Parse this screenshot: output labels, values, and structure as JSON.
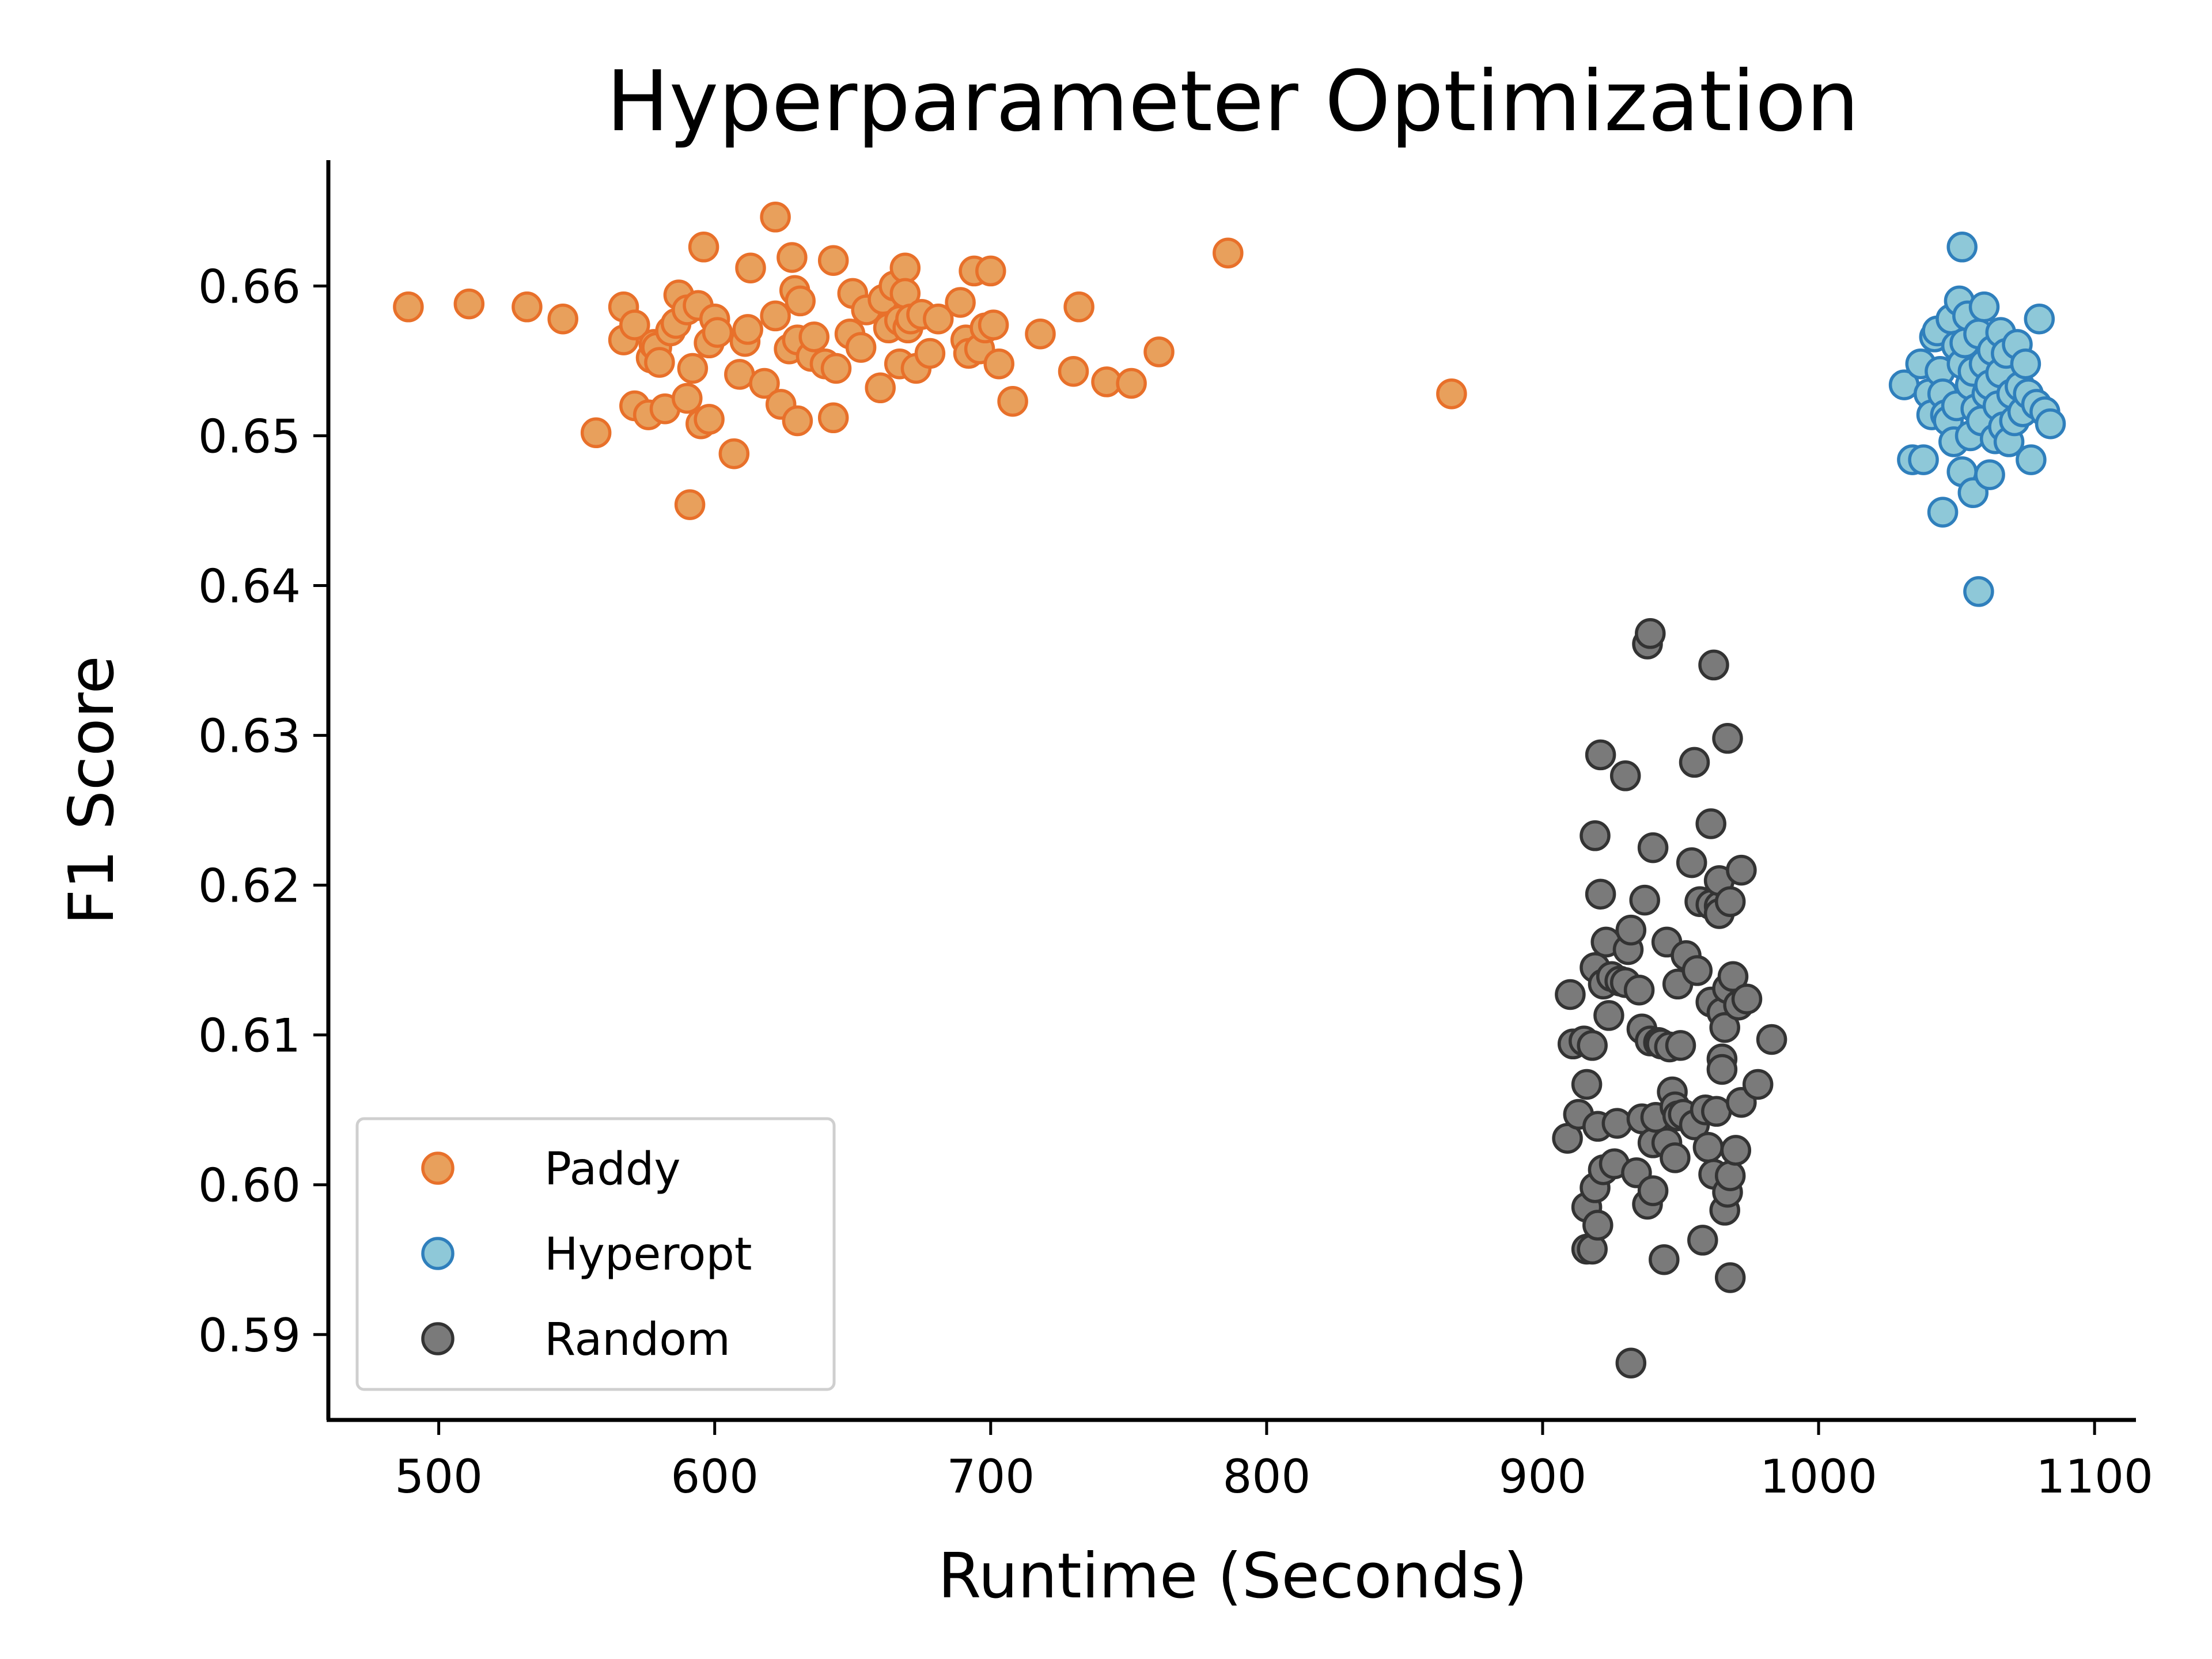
{
  "chart_data": {
    "type": "scatter",
    "title": "Hyperparameter Optimization",
    "xlabel": "Runtime (Seconds)",
    "ylabel": "F1 Score",
    "xlim": [
      460,
      1115
    ],
    "ylim": [
      0.5843,
      0.6684
    ],
    "xticks": [
      500,
      600,
      700,
      800,
      900,
      1000,
      1100
    ],
    "xtick_labels": [
      "500",
      "600",
      "700",
      "800",
      "900",
      "1000",
      "1100"
    ],
    "yticks": [
      0.59,
      0.6,
      0.61,
      0.62,
      0.63,
      0.64,
      0.65,
      0.66
    ],
    "ytick_labels": [
      "0.59",
      "0.60",
      "0.61",
      "0.62",
      "0.63",
      "0.64",
      "0.65",
      "0.66"
    ],
    "grid": false,
    "legend_position": "lower-left",
    "series": [
      {
        "name": "Paddy",
        "fill": "#E8A05C",
        "edge": "#E8702A",
        "points": [
          [
            489,
            0.6586
          ],
          [
            511,
            0.6588
          ],
          [
            532,
            0.6586
          ],
          [
            545,
            0.6578
          ],
          [
            557,
            0.6502
          ],
          [
            567,
            0.6586
          ],
          [
            567,
            0.6564
          ],
          [
            571,
            0.652
          ],
          [
            571,
            0.6574
          ],
          [
            576,
            0.6514
          ],
          [
            577,
            0.6552
          ],
          [
            578,
            0.6561
          ],
          [
            579,
            0.6559
          ],
          [
            580,
            0.6549
          ],
          [
            582,
            0.6518
          ],
          [
            584,
            0.657
          ],
          [
            586,
            0.6575
          ],
          [
            587,
            0.6594
          ],
          [
            590,
            0.6525
          ],
          [
            590,
            0.6584
          ],
          [
            591,
            0.6454
          ],
          [
            592,
            0.6545
          ],
          [
            594,
            0.6587
          ],
          [
            595,
            0.6508
          ],
          [
            596,
            0.6626
          ],
          [
            598,
            0.6511
          ],
          [
            598,
            0.6562
          ],
          [
            600,
            0.6578
          ],
          [
            601,
            0.6569
          ],
          [
            607,
            0.6488
          ],
          [
            609,
            0.6541
          ],
          [
            611,
            0.6563
          ],
          [
            612,
            0.6571
          ],
          [
            613,
            0.6612
          ],
          [
            618,
            0.6535
          ],
          [
            622,
            0.6646
          ],
          [
            622,
            0.658
          ],
          [
            624,
            0.6521
          ],
          [
            627,
            0.6558
          ],
          [
            628,
            0.6619
          ],
          [
            629,
            0.6597
          ],
          [
            630,
            0.651
          ],
          [
            630,
            0.6564
          ],
          [
            631,
            0.659
          ],
          [
            635,
            0.6553
          ],
          [
            636,
            0.6566
          ],
          [
            640,
            0.6548
          ],
          [
            643,
            0.6512
          ],
          [
            643,
            0.6617
          ],
          [
            644,
            0.6545
          ],
          [
            649,
            0.6568
          ],
          [
            650,
            0.6595
          ],
          [
            653,
            0.6559
          ],
          [
            655,
            0.6584
          ],
          [
            660,
            0.6532
          ],
          [
            661,
            0.6591
          ],
          [
            663,
            0.6572
          ],
          [
            665,
            0.66
          ],
          [
            667,
            0.6548
          ],
          [
            667,
            0.6577
          ],
          [
            669,
            0.6612
          ],
          [
            669,
            0.6595
          ],
          [
            670,
            0.6572
          ],
          [
            671,
            0.6578
          ],
          [
            673,
            0.6545
          ],
          [
            675,
            0.6581
          ],
          [
            678,
            0.6555
          ],
          [
            681,
            0.6578
          ],
          [
            689,
            0.6589
          ],
          [
            691,
            0.6564
          ],
          [
            692,
            0.6555
          ],
          [
            694,
            0.661
          ],
          [
            696,
            0.6558
          ],
          [
            698,
            0.6572
          ],
          [
            700,
            0.661
          ],
          [
            701,
            0.6574
          ],
          [
            703,
            0.6548
          ],
          [
            708,
            0.6523
          ],
          [
            718,
            0.6568
          ],
          [
            730,
            0.6543
          ],
          [
            732,
            0.6586
          ],
          [
            742,
            0.6536
          ],
          [
            751,
            0.6535
          ],
          [
            761,
            0.6556
          ],
          [
            786,
            0.6622
          ],
          [
            867,
            0.6528
          ]
        ]
      },
      {
        "name": "Hyperopt",
        "fill": "#8EC8D8",
        "edge": "#2F7FBC",
        "points": [
          [
            1031,
            0.6534
          ],
          [
            1034,
            0.6484
          ],
          [
            1037,
            0.6548
          ],
          [
            1038,
            0.6484
          ],
          [
            1040,
            0.6528
          ],
          [
            1041,
            0.6514
          ],
          [
            1042,
            0.6566
          ],
          [
            1043,
            0.657
          ],
          [
            1044,
            0.6543
          ],
          [
            1045,
            0.6449
          ],
          [
            1045,
            0.6528
          ],
          [
            1046,
            0.6514
          ],
          [
            1047,
            0.651
          ],
          [
            1048,
            0.6578
          ],
          [
            1049,
            0.6496
          ],
          [
            1050,
            0.656
          ],
          [
            1050,
            0.652
          ],
          [
            1051,
            0.659
          ],
          [
            1052,
            0.6626
          ],
          [
            1052,
            0.6548
          ],
          [
            1052,
            0.6476
          ],
          [
            1053,
            0.6562
          ],
          [
            1054,
            0.658
          ],
          [
            1055,
            0.6534
          ],
          [
            1055,
            0.65
          ],
          [
            1056,
            0.6462
          ],
          [
            1056,
            0.6543
          ],
          [
            1057,
            0.6518
          ],
          [
            1058,
            0.6396
          ],
          [
            1058,
            0.6568
          ],
          [
            1059,
            0.651
          ],
          [
            1060,
            0.6586
          ],
          [
            1060,
            0.6548
          ],
          [
            1061,
            0.6528
          ],
          [
            1062,
            0.6474
          ],
          [
            1062,
            0.6534
          ],
          [
            1063,
            0.6557
          ],
          [
            1064,
            0.6498
          ],
          [
            1065,
            0.652
          ],
          [
            1066,
            0.6569
          ],
          [
            1066,
            0.6542
          ],
          [
            1067,
            0.6506
          ],
          [
            1068,
            0.6555
          ],
          [
            1069,
            0.6496
          ],
          [
            1070,
            0.6528
          ],
          [
            1071,
            0.651
          ],
          [
            1072,
            0.6561
          ],
          [
            1073,
            0.6533
          ],
          [
            1074,
            0.6516
          ],
          [
            1075,
            0.6548
          ],
          [
            1076,
            0.6528
          ],
          [
            1077,
            0.6484
          ],
          [
            1079,
            0.6521
          ],
          [
            1080,
            0.6578
          ],
          [
            1082,
            0.6516
          ],
          [
            1084,
            0.6508
          ]
        ]
      },
      {
        "name": "Random",
        "fill": "#7A7A7A",
        "edge": "#333333",
        "points": [
          [
            909,
            0.6031
          ],
          [
            910,
            0.6127
          ],
          [
            911,
            0.6094
          ],
          [
            913,
            0.6047
          ],
          [
            915,
            0.6096
          ],
          [
            916,
            0.6067
          ],
          [
            916,
            0.5957
          ],
          [
            916,
            0.5985
          ],
          [
            918,
            0.6093
          ],
          [
            918,
            0.5957
          ],
          [
            919,
            0.5998
          ],
          [
            919,
            0.6233
          ],
          [
            919,
            0.6145
          ],
          [
            920,
            0.6039
          ],
          [
            920,
            0.5973
          ],
          [
            921,
            0.6287
          ],
          [
            921,
            0.6194
          ],
          [
            922,
            0.6134
          ],
          [
            922,
            0.601
          ],
          [
            923,
            0.6162
          ],
          [
            924,
            0.6113
          ],
          [
            925,
            0.6139
          ],
          [
            926,
            0.6014
          ],
          [
            927,
            0.6041
          ],
          [
            928,
            0.6136
          ],
          [
            930,
            0.6135
          ],
          [
            930,
            0.6273
          ],
          [
            931,
            0.6157
          ],
          [
            932,
            0.617
          ],
          [
            932,
            0.5881
          ],
          [
            934,
            0.6008
          ],
          [
            935,
            0.613
          ],
          [
            936,
            0.6104
          ],
          [
            936,
            0.6044
          ],
          [
            937,
            0.619
          ],
          [
            938,
            0.6361
          ],
          [
            938,
            0.5987
          ],
          [
            939,
            0.6096
          ],
          [
            939,
            0.6368
          ],
          [
            940,
            0.6028
          ],
          [
            940,
            0.6225
          ],
          [
            940,
            0.5996
          ],
          [
            941,
            0.6045
          ],
          [
            942,
            0.6095
          ],
          [
            943,
            0.6094
          ],
          [
            944,
            0.595
          ],
          [
            945,
            0.6162
          ],
          [
            945,
            0.6028
          ],
          [
            946,
            0.6092
          ],
          [
            947,
            0.6062
          ],
          [
            948,
            0.6052
          ],
          [
            948,
            0.6018
          ],
          [
            949,
            0.6046
          ],
          [
            949,
            0.6134
          ],
          [
            950,
            0.6093
          ],
          [
            951,
            0.6047
          ],
          [
            952,
            0.6153
          ],
          [
            954,
            0.6215
          ],
          [
            955,
            0.6282
          ],
          [
            955,
            0.604
          ],
          [
            956,
            0.6143
          ],
          [
            957,
            0.6189
          ],
          [
            958,
            0.5963
          ],
          [
            959,
            0.605
          ],
          [
            960,
            0.6025
          ],
          [
            961,
            0.6122
          ],
          [
            961,
            0.6187
          ],
          [
            961,
            0.6241
          ],
          [
            962,
            0.6007
          ],
          [
            962,
            0.6347
          ],
          [
            963,
            0.6049
          ],
          [
            964,
            0.6186
          ],
          [
            964,
            0.6203
          ],
          [
            964,
            0.6181
          ],
          [
            965,
            0.6084
          ],
          [
            965,
            0.6115
          ],
          [
            965,
            0.6077
          ],
          [
            966,
            0.6105
          ],
          [
            966,
            0.5983
          ],
          [
            967,
            0.6131
          ],
          [
            967,
            0.6298
          ],
          [
            967,
            0.5995
          ],
          [
            968,
            0.6006
          ],
          [
            968,
            0.6189
          ],
          [
            968,
            0.5938
          ],
          [
            969,
            0.6139
          ],
          [
            970,
            0.6023
          ],
          [
            971,
            0.612
          ],
          [
            972,
            0.621
          ],
          [
            972,
            0.6055
          ],
          [
            974,
            0.6124
          ],
          [
            978,
            0.6067
          ],
          [
            983,
            0.6097
          ]
        ]
      }
    ]
  }
}
